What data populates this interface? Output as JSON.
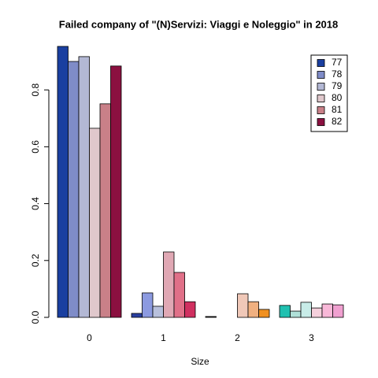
{
  "chart_data": {
    "type": "bar",
    "title": "Failed company of  \"(N)Servizi: Viaggi e Noleggio\" in 2018",
    "xlabel": "Size",
    "categories": [
      "0",
      "1",
      "2",
      "3"
    ],
    "series": [
      {
        "name": "77",
        "color": "#1a3fa0",
        "colors": [
          "#1a3fa0",
          "#2a3fa0",
          "#222222",
          "#20c0b0"
        ],
        "values": [
          0.953,
          0.014,
          0.003,
          0.042
        ]
      },
      {
        "name": "78",
        "color": "#7f8cc8",
        "colors": [
          "#7f8cc8",
          "#8c9ae0",
          "#888888",
          "#b0e0d8"
        ],
        "values": [
          0.9,
          0.086,
          0,
          0.022
        ]
      },
      {
        "name": "79",
        "color": "#b3b8d4",
        "colors": [
          "#b3b8d4",
          "#b8c0dc",
          "#bbbbbb",
          "#c8ece8"
        ],
        "values": [
          0.917,
          0.039,
          0,
          0.053
        ]
      },
      {
        "name": "80",
        "color": "#e0c8cc",
        "colors": [
          "#e0c8cc",
          "#e0a8b4",
          "#f0c8b8",
          "#f4d0dc"
        ],
        "values": [
          0.665,
          0.23,
          0.083,
          0.033
        ]
      },
      {
        "name": "81",
        "color": "#c98088",
        "colors": [
          "#c98088",
          "#e07088",
          "#f0b080",
          "#f8b8d8"
        ],
        "values": [
          0.751,
          0.158,
          0.055,
          0.047
        ]
      },
      {
        "name": "82",
        "color": "#8b1040",
        "colors": [
          "#8b1040",
          "#d03060",
          "#f09020",
          "#f0a0d0"
        ],
        "values": [
          0.884,
          0.055,
          0.028,
          0.044
        ]
      }
    ],
    "ylim": [
      0,
      0.95
    ],
    "yticks": [
      {
        "value": 0,
        "label": "0.0"
      },
      0.2,
      0.4,
      0.6,
      0.8
    ],
    "legend": "top-right"
  }
}
